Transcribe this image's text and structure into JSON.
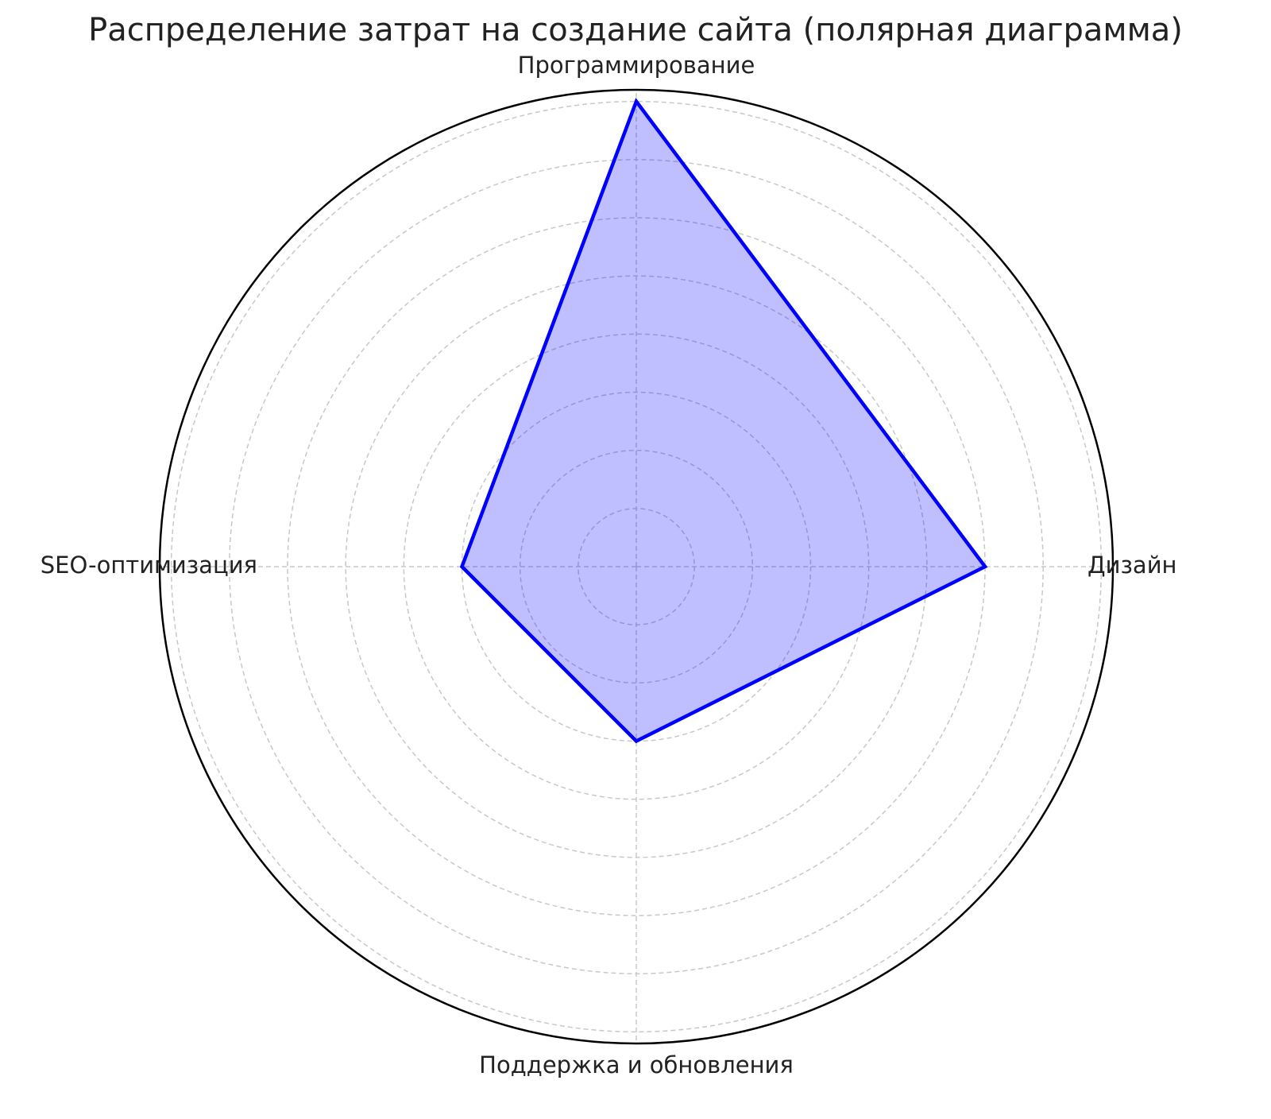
{
  "chart_data": {
    "type": "radar",
    "title": "Распределение затрат на создание сайта (полярная диаграмма)",
    "categories": [
      "Дизайн",
      "Программирование",
      "SEO-оптимизация",
      "Поддержка и обновления"
    ],
    "values": [
      30,
      40,
      15,
      15
    ],
    "color": "#0000ff",
    "ylim": [
      0,
      41
    ],
    "yticks": [
      5,
      10,
      15,
      20,
      25,
      30,
      35,
      40
    ],
    "grid": true
  }
}
